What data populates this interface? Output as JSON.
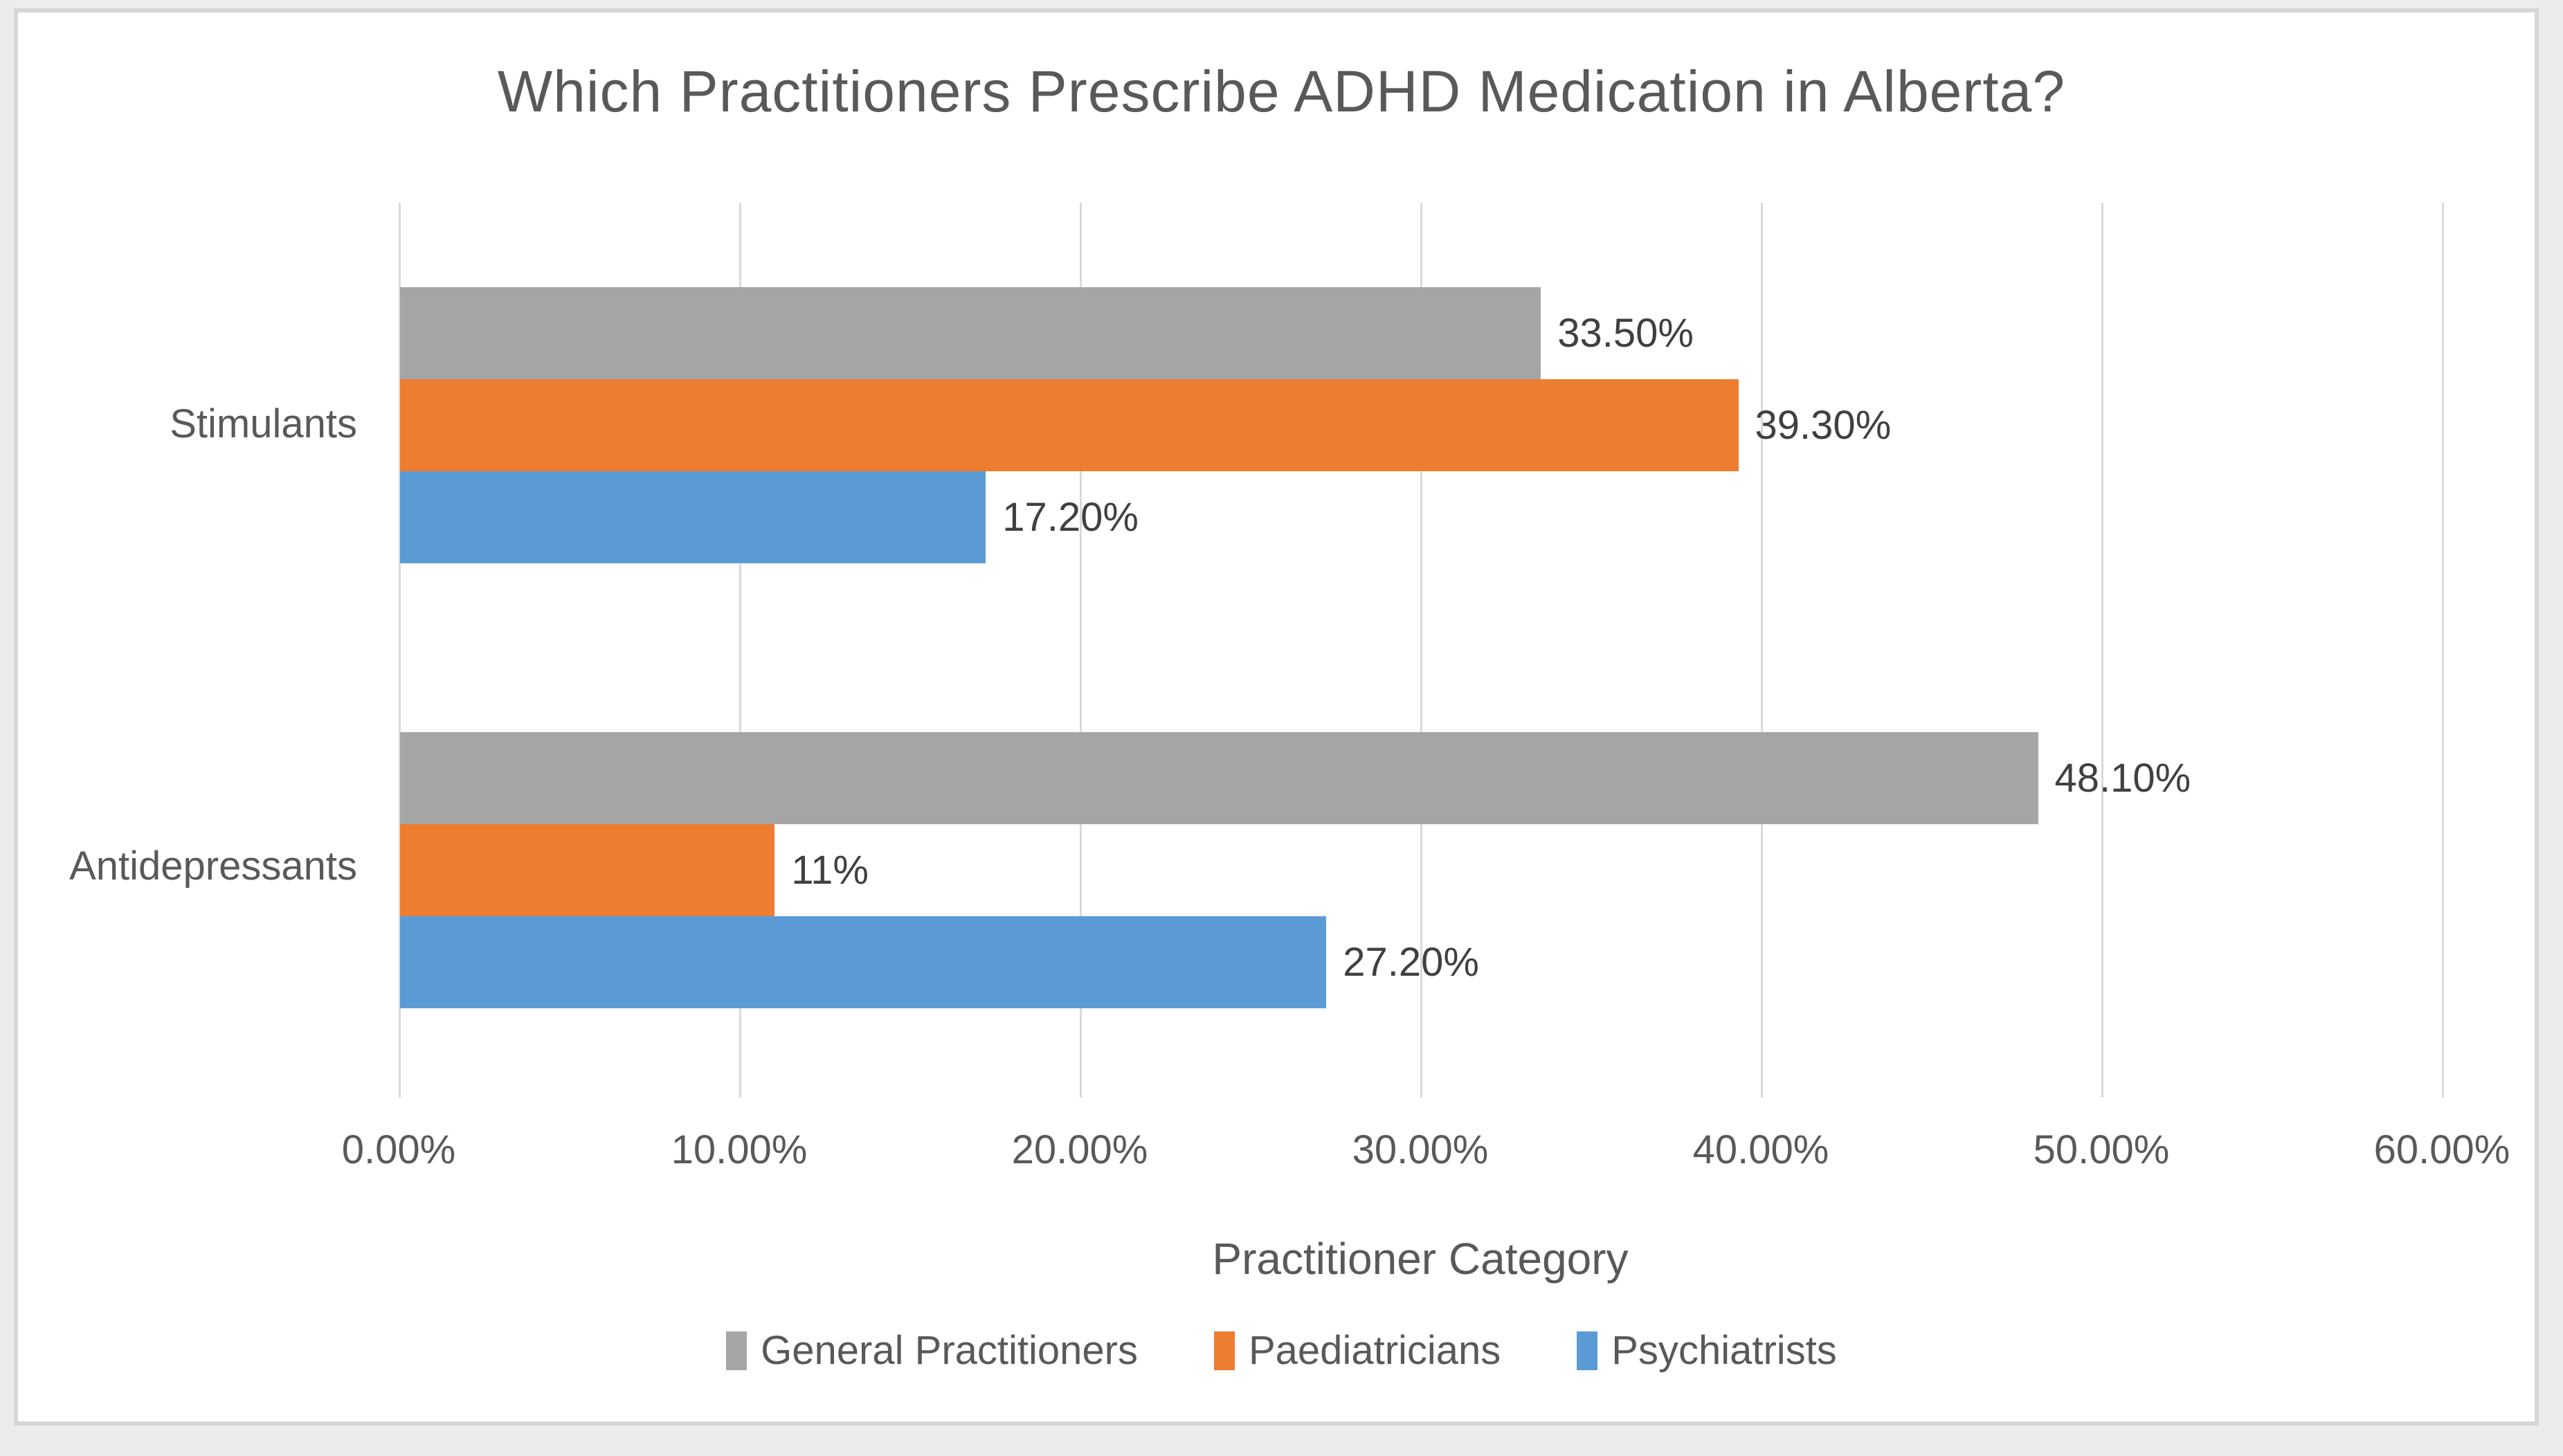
{
  "chart_data": {
    "type": "bar",
    "orientation": "horizontal",
    "title": "Which Practitioners Prescribe ADHD Medication in Alberta?",
    "xlabel": "Practitioner Category",
    "categories": [
      "Stimulants",
      "Antidepressants"
    ],
    "series": [
      {
        "name": "General Practitioners",
        "color": "#A5A5A5",
        "values": [
          33.5,
          48.1
        ],
        "labels": [
          "33.50%",
          "48.10%"
        ]
      },
      {
        "name": "Paediatricians",
        "color": "#ED7D31",
        "values": [
          39.3,
          11.0
        ],
        "labels": [
          "39.30%",
          "11%"
        ]
      },
      {
        "name": "Psychiatrists",
        "color": "#5B9BD5",
        "values": [
          17.2,
          27.2
        ],
        "labels": [
          "17.20%",
          "27.20%"
        ]
      }
    ],
    "x_ticks": [
      "0.00%",
      "10.00%",
      "20.00%",
      "30.00%",
      "40.00%",
      "50.00%",
      "60.00%"
    ],
    "xlim": [
      0,
      60
    ],
    "grid": true,
    "legend_position": "bottom",
    "colors": {
      "grid": "#D9D9D9",
      "axis_text": "#595959",
      "data_label_text": "#404040",
      "title_text": "#595959",
      "frame_border": "#D6D6D6",
      "plot_background": "#FFFFFF"
    }
  }
}
